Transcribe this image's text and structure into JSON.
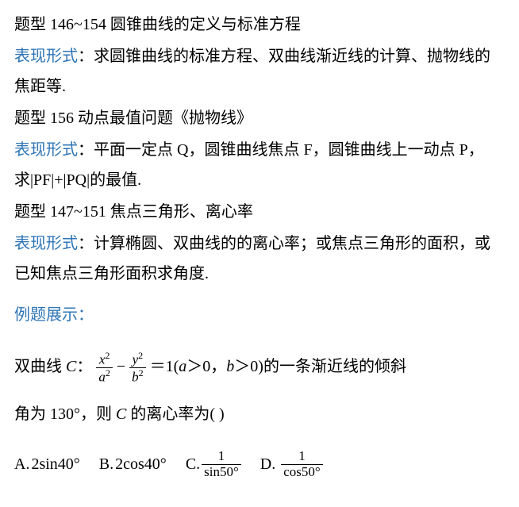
{
  "section1": {
    "title": "题型 146~154 圆锥曲线的定义与标准方程",
    "form_label": "表现形式",
    "form_text": "：求圆锥曲线的标准方程、双曲线渐近线的计算、抛物线的焦距等."
  },
  "section2": {
    "title": "题型 156 动点最值问题《抛物线》",
    "form_label": "表现形式",
    "form_text_pre": "：平面一定点 Q，圆锥曲线焦点 F，圆锥曲线上一动点 P，求|PF|+|PQ|的最值."
  },
  "section3": {
    "title": "题型 147~151 焦点三角形、离心率",
    "form_label": "表现形式",
    "form_text": "：计算椭圆、双曲线的的离心率；或焦点三角形的面积，或已知焦点三角形面积求角度."
  },
  "examples_label": "例题展示：",
  "problem": {
    "prefix": "双曲线 ",
    "curve_var": "C",
    "colon": "：",
    "frac1_num": "x",
    "frac1_den": "a",
    "minus": " − ",
    "frac2_num": "y",
    "frac2_den": "b",
    "equals": "＝1(",
    "cond_a": "a",
    "gt1": "＞0，",
    "cond_b": "b",
    "gt2": "＞0)的一条渐近线的倾斜",
    "line2_pre": "角为 130°，则 ",
    "line2_var": "C",
    "line2_post": " 的离心率为(          )"
  },
  "options": {
    "A": {
      "label": "A.",
      "text": "2sin40°"
    },
    "B": {
      "label": "B.",
      "text": " 2cos40°"
    },
    "C": {
      "label": "C.",
      "num": "1",
      "den": "sin50°"
    },
    "D": {
      "label": "D.",
      "num": "1",
      "den": "cos50°"
    }
  },
  "colors": {
    "text": "#000000",
    "accent": "#2e75b6",
    "background": "#ffffff"
  },
  "typography": {
    "base_fontsize": 20,
    "frac_fontsize": 17,
    "line_height": 1.9
  }
}
